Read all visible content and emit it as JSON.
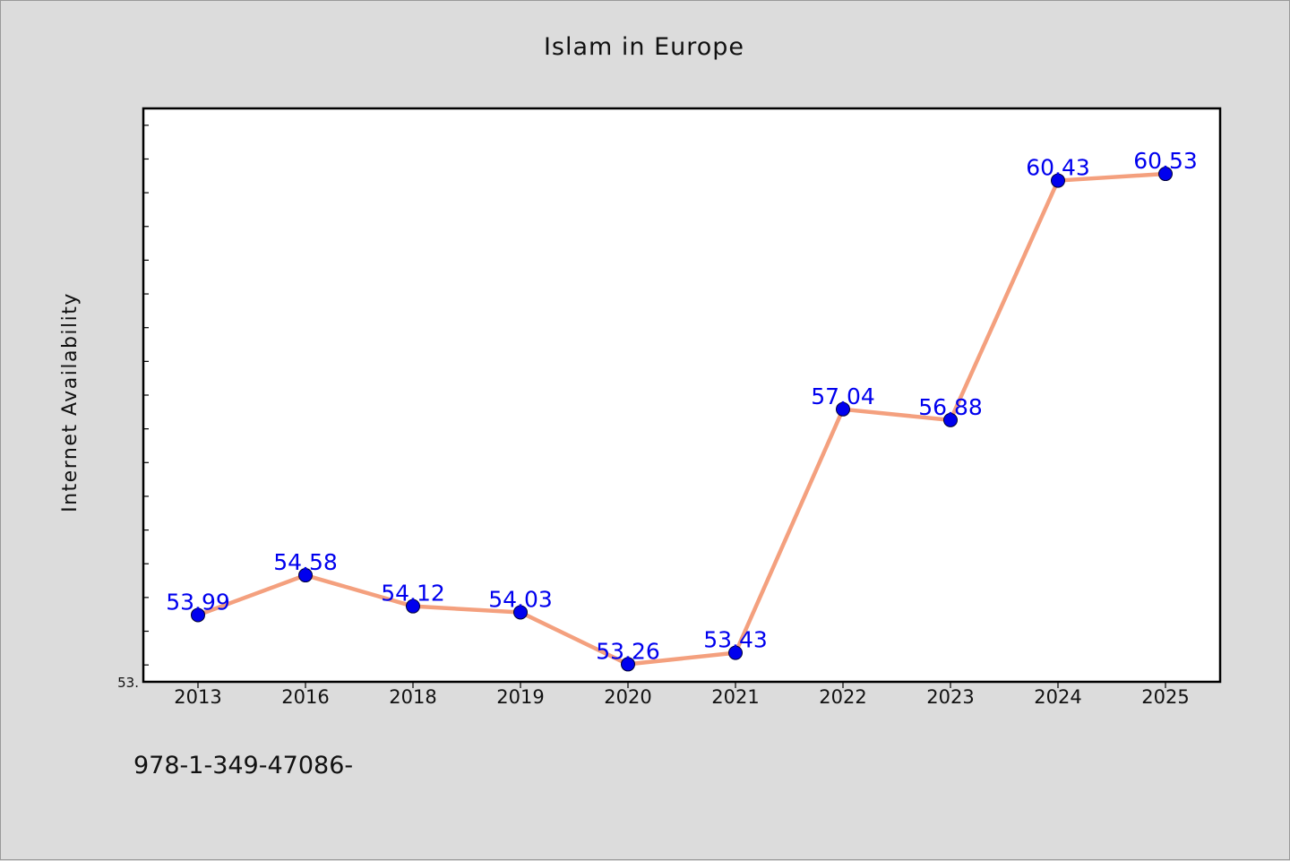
{
  "chart_data": {
    "type": "line",
    "title": "Islam in Europe",
    "xlabel": "",
    "ylabel": "Internet Availability",
    "categories": [
      "2013",
      "2016",
      "2018",
      "2019",
      "2020",
      "2021",
      "2022",
      "2023",
      "2024",
      "2025"
    ],
    "series": [
      {
        "values": [
          53.99,
          54.58,
          54.12,
          54.03,
          53.26,
          53.43,
          57.04,
          56.88,
          60.43,
          60.53
        ]
      }
    ],
    "data_labels": [
      "53.99",
      "54.58",
      "54.12",
      "54.03",
      "53.26",
      "53.43",
      "57.04",
      "56.88",
      "60.43",
      "60.53"
    ],
    "ylim": [
      53.0,
      61.5
    ],
    "y_tick_label_min": "53.",
    "grid": false,
    "legend": "none",
    "colors": {
      "line": "#f4a07e",
      "marker": "#0000ee",
      "marker_edge": "#000033",
      "data_label": "#0000ee",
      "plot_background": "#ffffff",
      "figure_background": "#dcdcdc"
    }
  },
  "footer": {
    "text": "978-1-349-47086-"
  }
}
